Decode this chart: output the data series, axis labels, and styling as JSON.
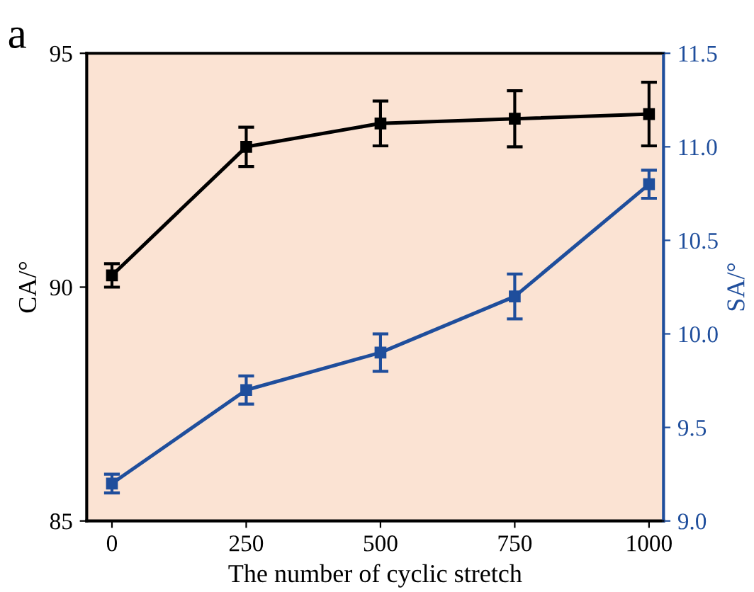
{
  "chart_data": {
    "type": "line",
    "xlabel": "The number of cyclic stretch",
    "ylabel": "CA/°",
    "y2label": "SA/°",
    "annotations": [
      "a"
    ],
    "x": [
      0,
      250,
      500,
      750,
      1000
    ],
    "series": [
      {
        "color": "#000000",
        "values": [
          90.25,
          93.0,
          93.5,
          93.6,
          93.7
        ],
        "errors": [
          0.25,
          0.42,
          0.48,
          0.6,
          0.68
        ]
      },
      {
        "color": "#1f4e9c",
        "axis": "y2",
        "values": [
          9.2,
          9.7,
          9.9,
          10.2,
          10.8
        ],
        "errors": [
          0.05,
          0.075,
          0.1,
          0.12,
          0.075
        ]
      }
    ],
    "xlim": [
      -47,
      1027
    ],
    "xticks": [
      0,
      250,
      500,
      750,
      1000
    ],
    "ylim": [
      85,
      95
    ],
    "yticks": [
      85,
      90,
      95
    ],
    "y2lim": [
      9.0,
      11.5
    ],
    "y2ticks": [
      {
        "value": 9.0,
        "label": "9.0"
      },
      9.5,
      {
        "value": 10.0,
        "label": "10.0"
      },
      10.5,
      {
        "value": 11.0,
        "label": "11.0"
      },
      11.5
    ],
    "marker": "square",
    "line_style": "solid",
    "grid": false,
    "legend": false
  }
}
